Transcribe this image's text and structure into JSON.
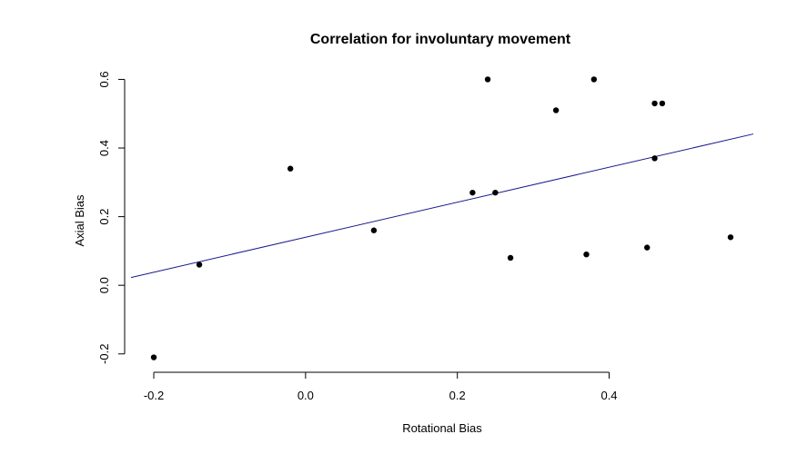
{
  "chart_data": {
    "type": "scatter",
    "title": "Correlation for involuntary movement",
    "xlabel": "Rotational Bias",
    "ylabel": "Axial Bias",
    "xlim": [
      -0.23,
      0.59
    ],
    "ylim": [
      -0.235,
      0.625
    ],
    "x_ticks": [
      -0.2,
      0.0,
      0.2,
      0.4
    ],
    "x_tick_labels": [
      "-0.2",
      "0.0",
      "0.2",
      "0.4"
    ],
    "y_ticks": [
      -0.2,
      0.0,
      0.2,
      0.4,
      0.6
    ],
    "y_tick_labels": [
      "-0.2",
      "0.0",
      "0.2",
      "0.4",
      "0.6"
    ],
    "grid": false,
    "point_color": "#000000",
    "line_color": "#1a1a8c",
    "points": [
      {
        "x": -0.2,
        "y": -0.21
      },
      {
        "x": -0.14,
        "y": 0.06
      },
      {
        "x": -0.02,
        "y": 0.34
      },
      {
        "x": 0.09,
        "y": 0.16
      },
      {
        "x": 0.22,
        "y": 0.27
      },
      {
        "x": 0.24,
        "y": 0.6
      },
      {
        "x": 0.25,
        "y": 0.27
      },
      {
        "x": 0.27,
        "y": 0.08
      },
      {
        "x": 0.33,
        "y": 0.51
      },
      {
        "x": 0.37,
        "y": 0.09
      },
      {
        "x": 0.38,
        "y": 0.6
      },
      {
        "x": 0.45,
        "y": 0.11
      },
      {
        "x": 0.46,
        "y": 0.53
      },
      {
        "x": 0.46,
        "y": 0.37
      },
      {
        "x": 0.47,
        "y": 0.53
      },
      {
        "x": 0.56,
        "y": 0.14
      }
    ],
    "regression_line": {
      "slope": 0.51,
      "intercept": 0.14
    }
  }
}
